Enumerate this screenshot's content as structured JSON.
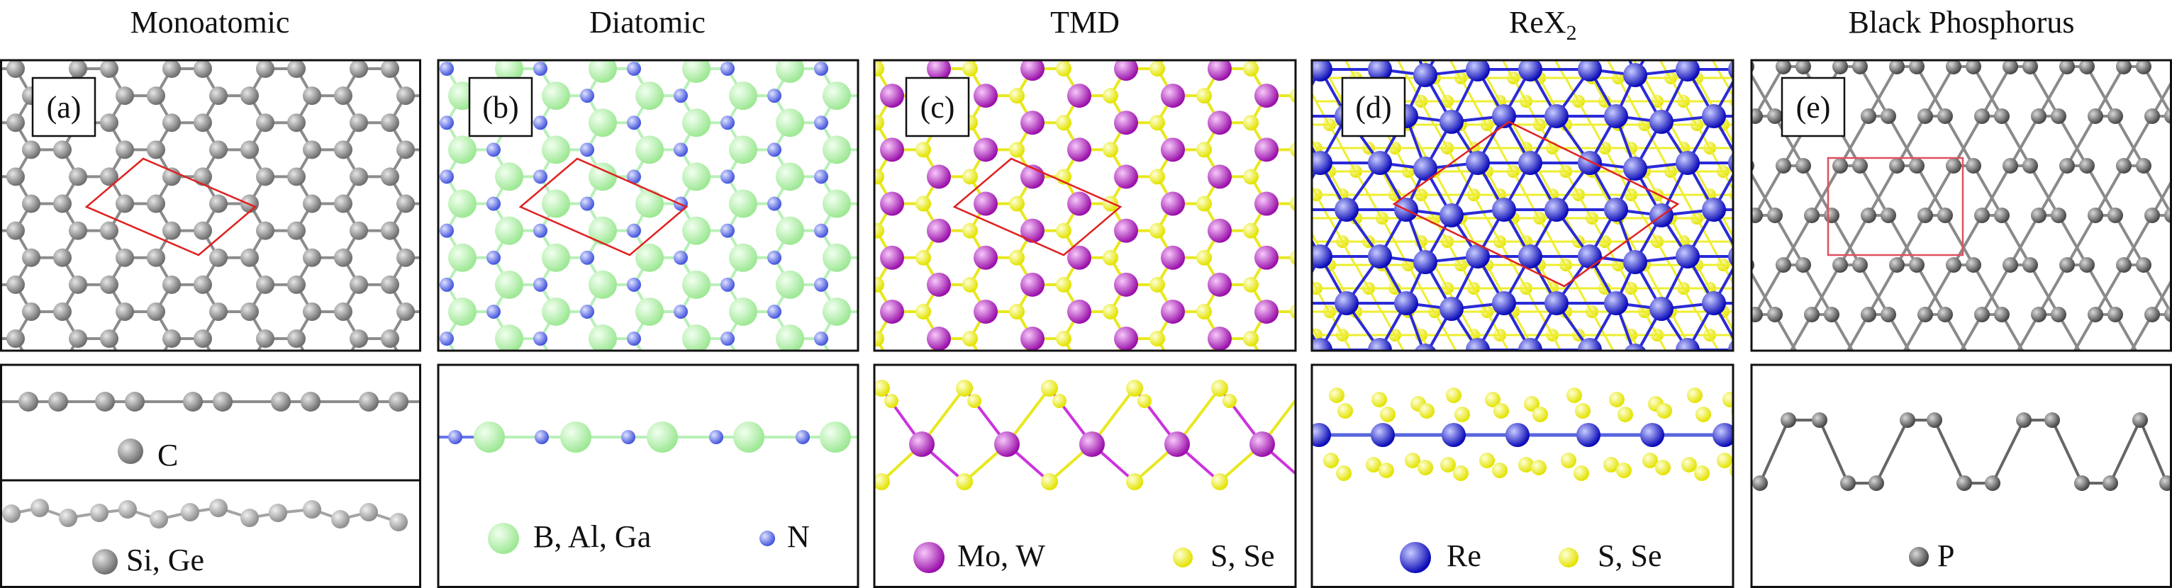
{
  "columns": [
    {
      "title": "Monoatomic",
      "panel_label": "(a)"
    },
    {
      "title": "Diatomic",
      "panel_label": "(b)"
    },
    {
      "title": "TMD",
      "panel_label": "(c)"
    },
    {
      "title": "ReX",
      "title_sub": "2",
      "panel_label": "(d)"
    },
    {
      "title": "Black Phosphorus",
      "panel_label": "(e)"
    }
  ],
  "legends": {
    "monoatomic_c": "C",
    "monoatomic_si": "Si, Ge",
    "diatomic_group3": "B, Al, Ga",
    "diatomic_n": "N",
    "tmd_metal": "Mo, W",
    "tmd_chalcogen": "S, Se",
    "rex2_metal": "Re",
    "rex2_chalcogen": "S, Se",
    "bp_p": "P"
  },
  "colors": {
    "carbon": "#8c8c8c",
    "silicon": "#a3a3a3",
    "boron": "#b8f5b0",
    "nitrogen": "#6677ee",
    "metal_tmd": "#bb22cc",
    "chalcogen": "#f2f21a",
    "rhenium": "#1a1ad4",
    "phosphorus": "#666666",
    "unit_cell": "#e02020"
  }
}
